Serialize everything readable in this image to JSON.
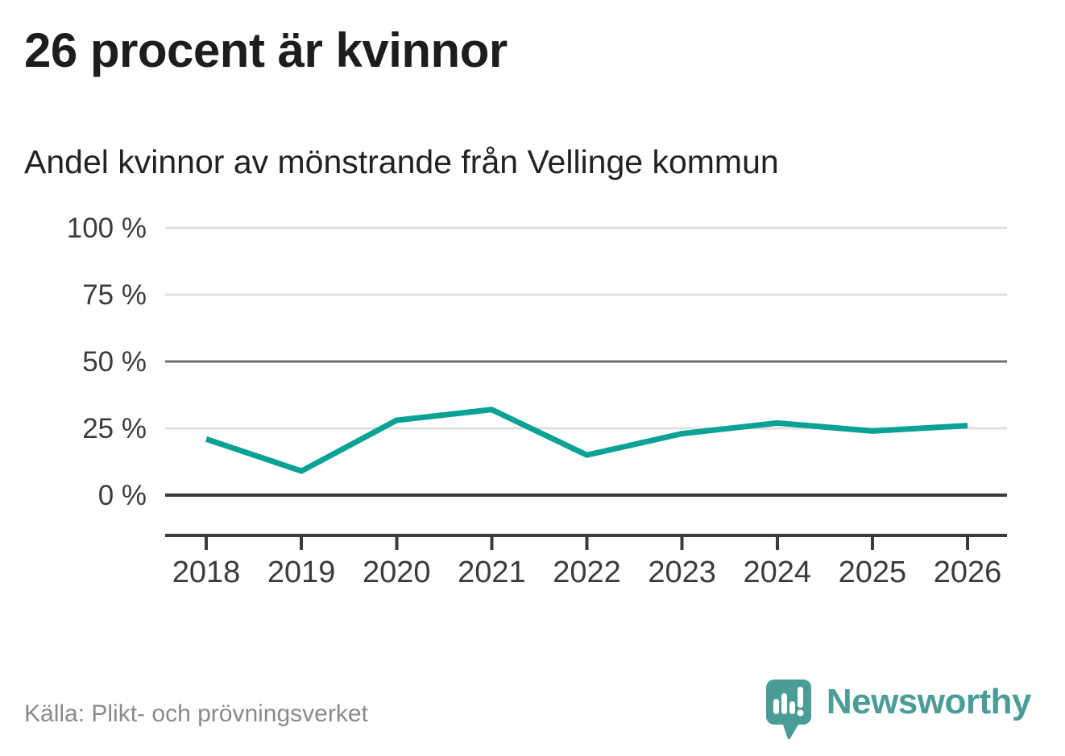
{
  "header": {
    "title": "26 procent är kvinnor",
    "subtitle": "Andel kvinnor av mönstrande från Vellinge kommun"
  },
  "chart_data": {
    "type": "line",
    "title": "26 procent är kvinnor",
    "subtitle": "Andel kvinnor av mönstrande från Vellinge kommun",
    "x": [
      "2018",
      "2019",
      "2020",
      "2021",
      "2022",
      "2023",
      "2024",
      "2025",
      "2026"
    ],
    "series": [
      {
        "name": "Andel kvinnor av mönstrande",
        "values": [
          21,
          9,
          28,
          32,
          15,
          23,
          27,
          24,
          26
        ]
      }
    ],
    "unit": "%",
    "ylim": [
      0,
      100
    ],
    "yticks": [
      0,
      25,
      50,
      75,
      100
    ],
    "ytick_labels": [
      "0 %",
      "25 %",
      "50 %",
      "75 %",
      "100 %"
    ],
    "grid": true,
    "legend": "none",
    "colors": {
      "line": "#09a295",
      "grid_light": "#e0e0e0",
      "grid_mid": "#6d6d73",
      "axis_dark": "#3b3b3b",
      "tick_text": "#3b3b3b"
    }
  },
  "footer": {
    "source": "Källa: Plikt- och prövningsverket",
    "brand": "Newsworthy",
    "brand_color": "#4a9c96"
  }
}
